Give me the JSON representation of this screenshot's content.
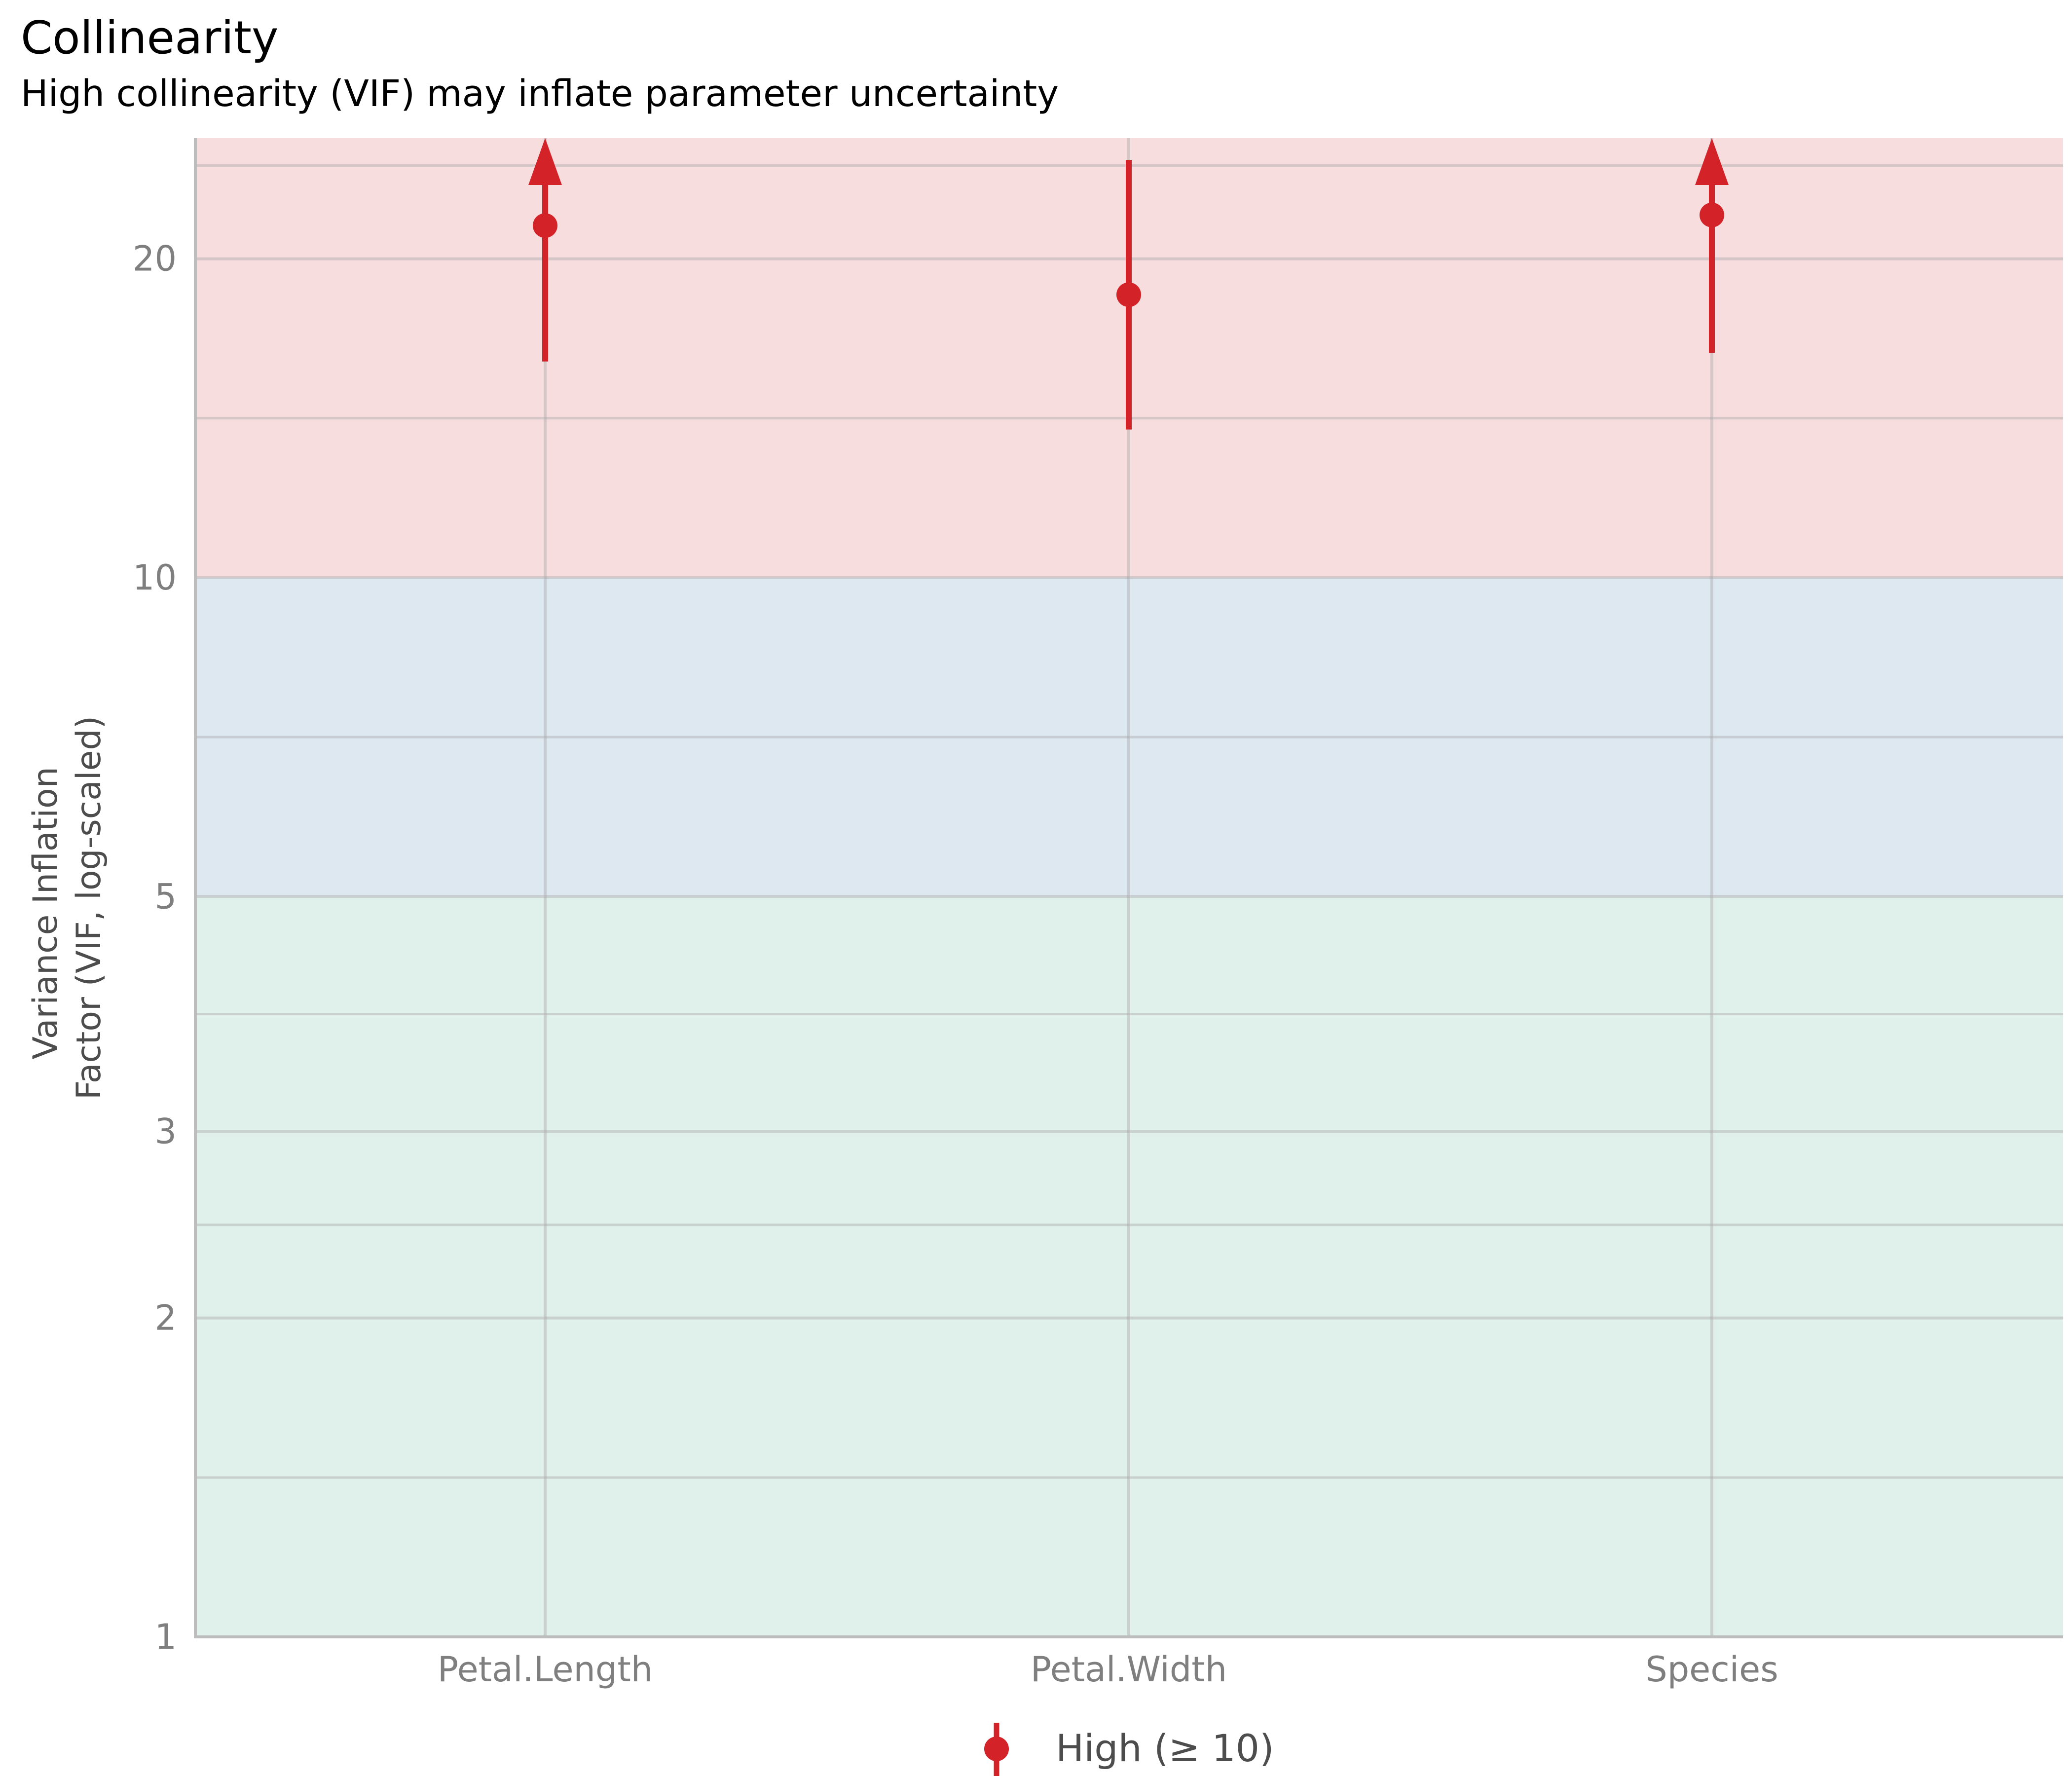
{
  "chart_data": {
    "type": "scatter",
    "title": "Collinearity",
    "subtitle": "High collinearity (VIF) may inflate parameter uncertainty",
    "xlabel": "",
    "ylabel_lines": [
      "Variance Inflation",
      "Factor (VIF, log-scaled)"
    ],
    "y_scale": "log",
    "ylim": [
      1,
      26
    ],
    "y_ticks": [
      1,
      2,
      3,
      5,
      10,
      20
    ],
    "y_minor_ticks": [
      1.414,
      2.449,
      3.873,
      7.071,
      14.142,
      24.495
    ],
    "categories": [
      "Petal.Length",
      "Petal.Width",
      "Species"
    ],
    "series": [
      {
        "name": "High (≥ 10)",
        "color": "#d32228",
        "values": [
          21.5,
          18.5,
          22.0
        ],
        "ci_low": [
          16.0,
          13.8,
          16.3
        ],
        "ci_high": [
          26,
          24.8,
          26
        ],
        "truncated_high": [
          true,
          false,
          true
        ]
      }
    ],
    "bands": [
      {
        "from": 1,
        "to": 5,
        "color": "#e0f1eb"
      },
      {
        "from": 5,
        "to": 10,
        "color": "#dde8f0"
      },
      {
        "from": 10,
        "to": 26,
        "color": "#f8dddf"
      }
    ],
    "grid": true,
    "legend_position": "bottom"
  }
}
